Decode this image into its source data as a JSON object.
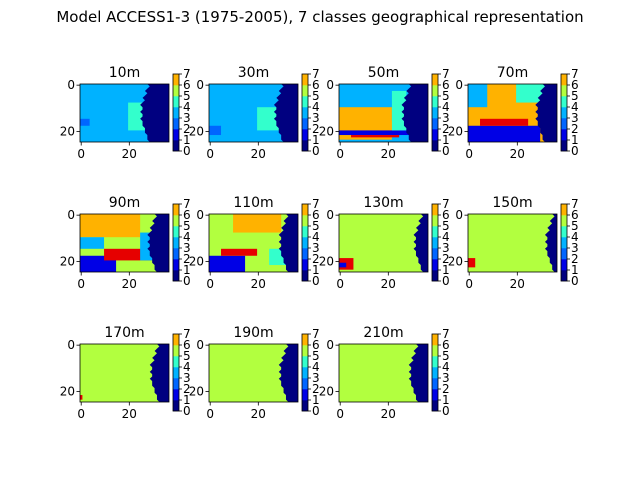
{
  "chart_data": {
    "type": "heatmap",
    "title": "Model ACCESS1-3 (1975-2005), 7 classes geographical representation",
    "colorbar": {
      "min": 0,
      "max": 7,
      "ticks": [
        "0",
        "1",
        "2",
        "3",
        "4",
        "5",
        "6",
        "7"
      ]
    },
    "xticks": [
      "0",
      "20"
    ],
    "yticks": [
      "0",
      "20"
    ],
    "grid_size": {
      "cols": 37,
      "rows": 25
    },
    "class_colors": {
      "0": "#000080",
      "1": "#0000e6",
      "2": "#0066ff",
      "3": "#00b2ff",
      "4": "#33ffcc",
      "5": "#b2ff3f",
      "6": "#ffb200",
      "7": "#e60000"
    },
    "panels": [
      {
        "label": "10m",
        "background": 3,
        "coast": 29,
        "patches": [
          [
            20,
            30,
            8,
            20,
            4
          ],
          [
            0,
            4,
            15,
            18,
            2
          ]
        ]
      },
      {
        "label": "30m",
        "background": 3,
        "coast": 31,
        "patches": [
          [
            20,
            30,
            10,
            20,
            4
          ],
          [
            0,
            5,
            18,
            22,
            2
          ]
        ]
      },
      {
        "label": "50m",
        "background": 3,
        "coast": 30,
        "patches": [
          [
            0,
            22,
            10,
            24,
            6
          ],
          [
            0,
            25,
            16,
            20,
            6
          ],
          [
            0,
            30,
            20,
            22,
            1
          ],
          [
            5,
            25,
            22,
            23,
            7
          ],
          [
            22,
            28,
            3,
            20,
            4
          ]
        ]
      },
      {
        "label": "70m",
        "background": 6,
        "coast": 32,
        "patches": [
          [
            0,
            8,
            0,
            10,
            3
          ],
          [
            0,
            30,
            18,
            25,
            1
          ],
          [
            5,
            25,
            15,
            18,
            7
          ],
          [
            20,
            32,
            0,
            8,
            4
          ]
        ]
      },
      {
        "label": "90m",
        "background": 5,
        "coast": 32,
        "patches": [
          [
            0,
            25,
            0,
            10,
            6
          ],
          [
            0,
            15,
            18,
            25,
            1
          ],
          [
            10,
            30,
            15,
            20,
            7
          ],
          [
            0,
            10,
            10,
            15,
            3
          ],
          [
            25,
            32,
            8,
            20,
            3
          ]
        ]
      },
      {
        "label": "110m",
        "background": 5,
        "coast": 33,
        "patches": [
          [
            10,
            30,
            0,
            8,
            6
          ],
          [
            0,
            15,
            18,
            25,
            1
          ],
          [
            5,
            20,
            15,
            18,
            7
          ],
          [
            25,
            33,
            15,
            22,
            4
          ]
        ]
      },
      {
        "label": "130m",
        "background": 5,
        "coast": 35,
        "patches": [
          [
            0,
            6,
            19,
            24,
            7
          ],
          [
            0,
            3,
            21,
            23,
            1
          ]
        ]
      },
      {
        "label": "150m",
        "background": 5,
        "coast": 36,
        "patches": [
          [
            0,
            3,
            19,
            23,
            7
          ]
        ]
      },
      {
        "label": "170m",
        "background": 5,
        "coast": 33,
        "patches": [
          [
            0,
            1,
            22,
            24,
            7
          ]
        ]
      },
      {
        "label": "190m",
        "background": 5,
        "coast": 33,
        "patches": []
      },
      {
        "label": "210m",
        "background": 5,
        "coast": 33,
        "patches": []
      }
    ]
  }
}
